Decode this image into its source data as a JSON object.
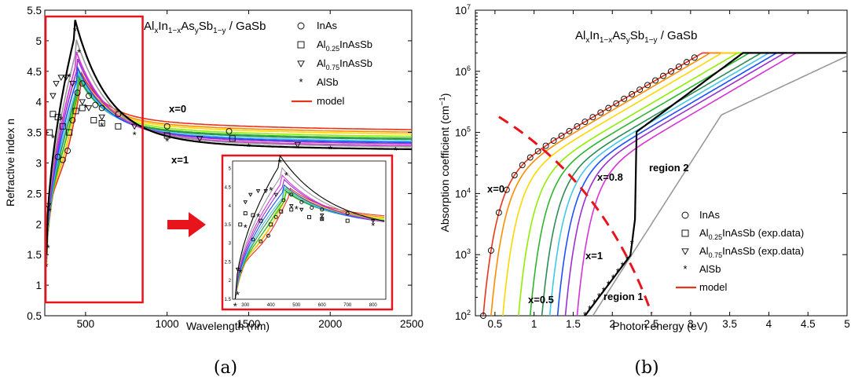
{
  "figure": {
    "caption_a": "(a)",
    "caption_b": "(b)"
  },
  "chart_data": [
    {
      "type": "line",
      "panel": "(a)",
      "title_html": [
        "Al",
        "x",
        "In",
        "1-x",
        "As",
        "y",
        "Sb",
        "1-y",
        " / GaSb"
      ],
      "title_parts": {
        "al": "Al",
        "x": "x",
        "in": "In",
        "one_minus_x": "1−x",
        "as": "As",
        "y": "y",
        "sb": "Sb",
        "one_minus_y": "1−y",
        "rest": " / GaSb"
      },
      "xlabel": "Wavelength (nm)",
      "ylabel": "Refractive index n",
      "xlim": [
        250,
        2500
      ],
      "ylim": [
        0.5,
        5.5
      ],
      "xticks": [
        500,
        1000,
        1500,
        2000,
        2500
      ],
      "yticks": [
        0.5,
        1,
        1.5,
        2,
        2.5,
        3,
        3.5,
        4,
        4.5,
        5,
        5.5
      ],
      "legend": {
        "placement": "top-right",
        "entries": [
          {
            "label": "InAs",
            "marker": "circle"
          },
          {
            "label": "Al0.25InAsSb",
            "marker": "square",
            "base": "Al",
            "sub": "0.25",
            "rest": "InAsSb"
          },
          {
            "label": "Al0.75InAsSb",
            "marker": "triangle-down",
            "base": "Al",
            "sub": "0.75",
            "rest": "InAsSb"
          },
          {
            "label": "AlSb",
            "marker": "star"
          },
          {
            "label": "model",
            "marker": "line",
            "color": "#e8341c"
          }
        ]
      },
      "annotations": [
        {
          "text": "x=0",
          "color": "#e8341c",
          "at": [
            1050,
            3.78
          ]
        },
        {
          "text": "x=1",
          "color": "#000000",
          "at": [
            1050,
            3.12
          ]
        }
      ],
      "highlight_box_x": [
        255,
        850
      ],
      "series_colors": [
        "#e8341c",
        "#ff8c00",
        "#ffd700",
        "#90ee00",
        "#2db52d",
        "#2e8b57",
        "#40c8e8",
        "#1e4fff",
        "#9932cc",
        "#d633d6",
        "#999999",
        "#000000"
      ],
      "series_longwave_n": [
        3.52,
        3.48,
        3.45,
        3.41,
        3.38,
        3.36,
        3.33,
        3.31,
        3.29,
        3.26,
        3.24,
        3.2
      ],
      "series_peak": [
        {
          "x": 470,
          "y": 4.25
        },
        {
          "x": 460,
          "y": 4.25
        },
        {
          "x": 460,
          "y": 4.2
        },
        {
          "x": 455,
          "y": 4.25
        },
        {
          "x": 455,
          "y": 4.15
        },
        {
          "x": 450,
          "y": 4.2
        },
        {
          "x": 450,
          "y": 4.25
        },
        {
          "x": 445,
          "y": 4.35
        },
        {
          "x": 445,
          "y": 4.5
        },
        {
          "x": 440,
          "y": 4.6
        },
        {
          "x": 440,
          "y": 4.8
        },
        {
          "x": 435,
          "y": 5.1
        }
      ],
      "inset": {
        "xticks": [
          300,
          400,
          500,
          600,
          700,
          800
        ],
        "yticks": [
          1.5,
          2,
          2.5,
          3,
          3.5,
          4,
          4.5,
          5
        ],
        "xlim": [
          250,
          850
        ],
        "ylim": [
          1.5,
          5.2
        ]
      },
      "data_points": {
        "InAs": [
          [
            330,
            3.1
          ],
          [
            360,
            3.05
          ],
          [
            390,
            3.2
          ],
          [
            420,
            3.7
          ],
          [
            450,
            4.15
          ],
          [
            480,
            4.3
          ],
          [
            520,
            4.1
          ],
          [
            560,
            3.95
          ],
          [
            600,
            3.9
          ],
          [
            700,
            3.8
          ],
          [
            1000,
            3.6
          ],
          [
            1380,
            3.52
          ]
        ],
        "Al0.25InAsSb": [
          [
            280,
            3.5
          ],
          [
            300,
            3.8
          ],
          [
            330,
            3.75
          ],
          [
            360,
            3.6
          ],
          [
            400,
            3.5
          ],
          [
            440,
            3.85
          ],
          [
            480,
            3.9
          ],
          [
            550,
            3.7
          ],
          [
            600,
            3.65
          ],
          [
            700,
            3.6
          ],
          [
            1000,
            3.45
          ],
          [
            1400,
            3.4
          ]
        ],
        "Al0.75InAsSb": [
          [
            270,
            2.3
          ],
          [
            300,
            4.1
          ],
          [
            320,
            4.3
          ],
          [
            350,
            4.4
          ],
          [
            380,
            4.4
          ],
          [
            420,
            4.3
          ],
          [
            480,
            4.0
          ],
          [
            520,
            3.9
          ],
          [
            600,
            3.75
          ],
          [
            800,
            3.6
          ],
          [
            1200,
            3.4
          ],
          [
            1800,
            3.3
          ]
        ],
        "AlSb": [
          [
            260,
            1.3
          ],
          [
            270,
            1.6
          ],
          [
            280,
            2.2
          ],
          [
            300,
            3.4
          ],
          [
            350,
            3.7
          ],
          [
            400,
            4.4
          ],
          [
            435,
            5.15
          ],
          [
            460,
            4.8
          ],
          [
            500,
            3.9
          ],
          [
            600,
            3.6
          ],
          [
            800,
            3.45
          ],
          [
            1000,
            3.35
          ],
          [
            1500,
            3.26
          ],
          [
            2000,
            3.22
          ],
          [
            2400,
            3.2
          ]
        ]
      }
    },
    {
      "type": "line",
      "panel": "(b)",
      "title_parts": {
        "al": "Al",
        "x": "x",
        "in": "In",
        "one_minus_x": "1−x",
        "as": "As",
        "y": "y",
        "sb": "Sb",
        "one_minus_y": "1−y",
        "rest": " / GaSb"
      },
      "xlabel": "Photon energy (eV)",
      "ylabel": "Absorption coefficient (cm−1)",
      "ylabel_parts": {
        "main": "Absorption coefficient (cm",
        "sup": "−1",
        "close": ")"
      },
      "xlim": [
        0.25,
        5
      ],
      "ylim_log10": [
        2,
        7
      ],
      "yscale": "log",
      "xticks": [
        0.5,
        1,
        1.5,
        2,
        2.5,
        3,
        3.5,
        4,
        4.5,
        5
      ],
      "yticks_exp": [
        2,
        3,
        4,
        5,
        6,
        7
      ],
      "legend": {
        "placement": "bottom-right",
        "entries": [
          {
            "label": "InAs",
            "marker": "circle"
          },
          {
            "label": "Al0.25InAsSb (exp.data)",
            "marker": "square",
            "base": "Al",
            "sub": "0.25",
            "rest": "InAsSb (exp.data)"
          },
          {
            "label": "Al0.75InAsSb (exp.data)",
            "marker": "triangle-down",
            "base": "Al",
            "sub": "0.75",
            "rest": "InAsSb (exp.data)"
          },
          {
            "label": "AlSb",
            "marker": "star"
          },
          {
            "label": "model",
            "marker": "line",
            "color": "#e8341c"
          }
        ]
      },
      "annotations": [
        {
          "text": "x=0",
          "color": "#e8341c"
        },
        {
          "text": "x=0.8",
          "color": "#d633d6"
        },
        {
          "text": "x=0.5",
          "color": "#2db52d"
        },
        {
          "text": "x=1",
          "color": "#000000"
        },
        {
          "text": "region 1",
          "color": "#000000"
        },
        {
          "text": "region 2",
          "color": "#000000"
        }
      ],
      "edges_eV": [
        0.35,
        0.45,
        0.6,
        0.8,
        0.95,
        1.1,
        1.2,
        1.3,
        1.4,
        1.55,
        1.75,
        1.65
      ],
      "series_colors": [
        "#e8341c",
        "#ff8c00",
        "#ffd700",
        "#90ee00",
        "#2db52d",
        "#2e8b57",
        "#40c8e8",
        "#1e4fff",
        "#9932cc",
        "#d633d6",
        "#999999",
        "#000000"
      ]
    }
  ]
}
